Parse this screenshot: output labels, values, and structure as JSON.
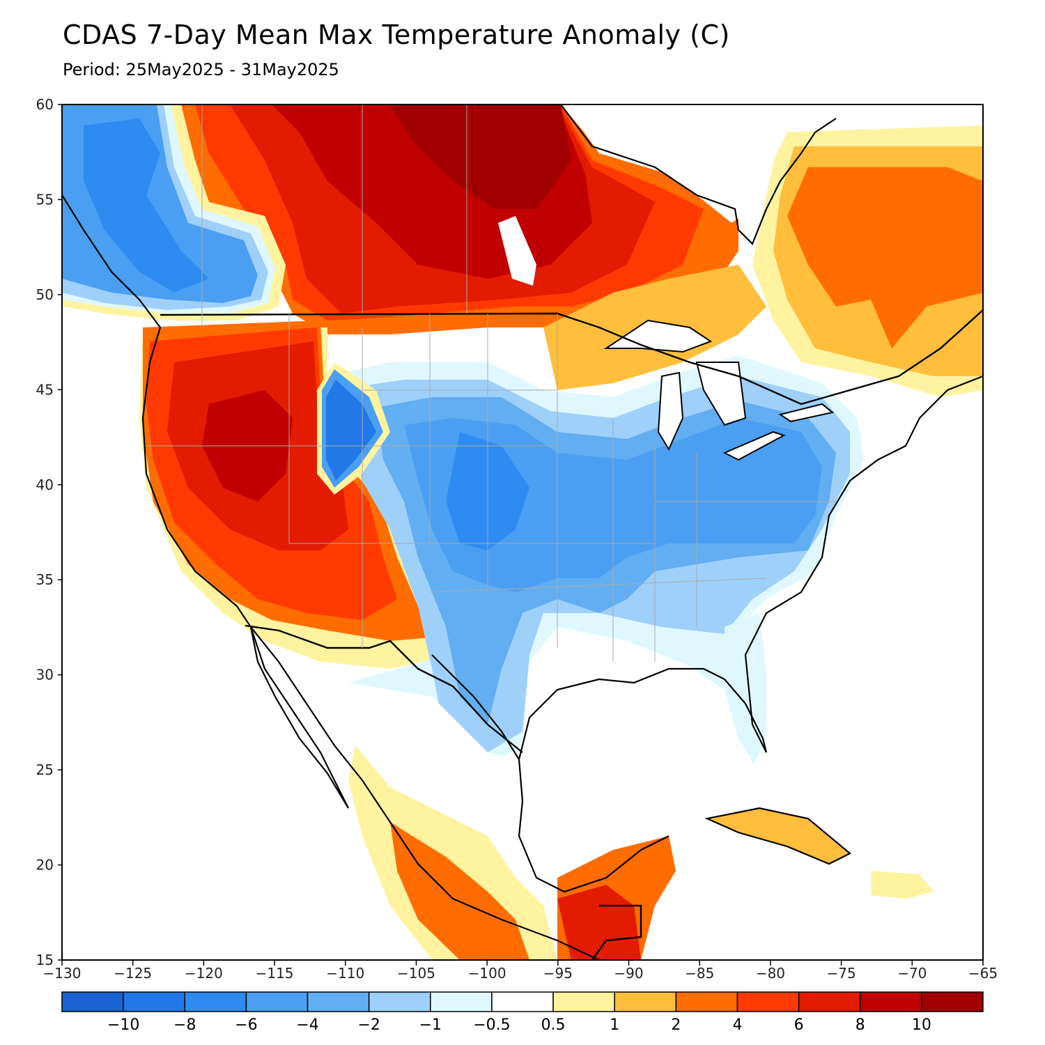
{
  "header": {
    "title": "CDAS 7-Day Mean Max Temperature Anomaly (C)",
    "period": "Period: 25May2025 - 31May2025"
  },
  "map": {
    "lon_range": [
      -130,
      -65
    ],
    "lat_range": [
      15,
      60
    ],
    "lon_ticks": [
      "-130",
      "-125",
      "-120",
      "-115",
      "-110",
      "-105",
      "-100",
      "-95",
      "-90",
      "-85",
      "-80",
      "-75",
      "-70",
      "-65"
    ],
    "lat_ticks": [
      "60",
      "55",
      "50",
      "45",
      "40",
      "35",
      "30",
      "25",
      "20",
      "15"
    ]
  },
  "colorbar": {
    "colors": [
      "#1a62d2",
      "#2178e6",
      "#2e8cf0",
      "#4a9ff2",
      "#62aef2",
      "#9fd0fa",
      "#dff8ff",
      "#ffffff",
      "#fff3a0",
      "#ffbe3c",
      "#ff6c00",
      "#ff3a00",
      "#e31b00",
      "#c00000",
      "#a00000"
    ],
    "labels": [
      "-10",
      "-8",
      "-6",
      "-4",
      "-2",
      "-1",
      "-0.5",
      "0.5",
      "1",
      "2",
      "4",
      "6",
      "8",
      "10"
    ]
  }
}
